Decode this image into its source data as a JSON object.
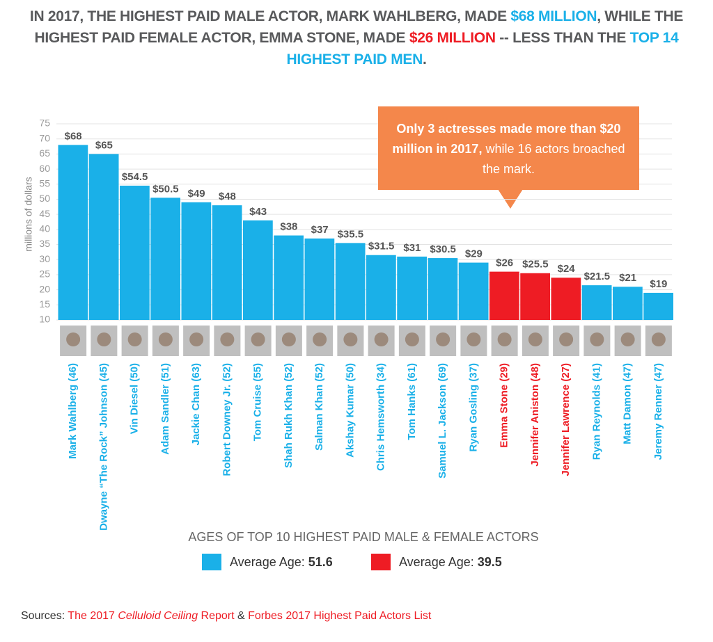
{
  "chart_data": {
    "type": "bar",
    "title": [
      {
        "text": "IN 2017, THE HIGHEST PAID MALE ACTOR, MARK WAHLBERG, MADE ",
        "color": "#58595b"
      },
      {
        "text": "$68 MILLION",
        "color": "#1ab0e8"
      },
      {
        "text": ", WHILE THE HIGHEST PAID FEMALE ACTOR, EMMA STONE, MADE ",
        "color": "#58595b"
      },
      {
        "text": "$26 MILLION",
        "color": "#ee1c24"
      },
      {
        "text": " -- LESS THAN THE ",
        "color": "#58595b"
      },
      {
        "text": "TOP 14 HIGHEST PAID MEN",
        "color": "#1ab0e8"
      },
      {
        "text": ".",
        "color": "#58595b"
      }
    ],
    "y_label": "millions of dollars",
    "categories": [
      "Mark Wahlberg (46)",
      "Dwayne “The Rock” Johnson (45)",
      "Vin Diesel (50)",
      "Adam Sandler (51)",
      "Jackie Chan (63)",
      "Robert Downey Jr. (52)",
      "Tom Cruise (55)",
      "Shah Rukh Khan (52)",
      "Salman Khan (52)",
      "Akshay Kumar (50)",
      "Chris Hemsworth (34)",
      "Tom Hanks (61)",
      "Samuel L. Jackson (69)",
      "Ryan Gosling (37)",
      "Emma Stone (29)",
      "Jennifer Aniston (48)",
      "Jennifer Lawrence (27)",
      "Ryan Reynolds (41)",
      "Matt Damon (47)",
      "Jeremy Renner (47)"
    ],
    "values": [
      68,
      65,
      54.5,
      50.5,
      49,
      48,
      43,
      38,
      37,
      35.5,
      31.5,
      31,
      30.5,
      29,
      26,
      25.5,
      24,
      21.5,
      21,
      19
    ],
    "value_labels": [
      "$68",
      "$65",
      "$54.5",
      "$50.5",
      "$49",
      "$48",
      "$43",
      "$38",
      "$37",
      "$35.5",
      "$31.5",
      "$31",
      "$30.5",
      "$29",
      "$26",
      "$25.5",
      "$24",
      "$21.5",
      "$21",
      "$19"
    ],
    "colors": [
      "#1ab0e8",
      "#1ab0e8",
      "#1ab0e8",
      "#1ab0e8",
      "#1ab0e8",
      "#1ab0e8",
      "#1ab0e8",
      "#1ab0e8",
      "#1ab0e8",
      "#1ab0e8",
      "#1ab0e8",
      "#1ab0e8",
      "#1ab0e8",
      "#1ab0e8",
      "#ee1c24",
      "#ee1c24",
      "#ee1c24",
      "#1ab0e8",
      "#1ab0e8",
      "#1ab0e8"
    ],
    "ylim": [
      10,
      75
    ],
    "yticks": [
      10,
      15,
      20,
      25,
      30,
      35,
      40,
      45,
      50,
      55,
      60,
      65,
      70,
      75
    ],
    "grid": true,
    "annotation": {
      "bold": "Only 3 actresses made more than $20 million in 2017,",
      "text": " while 16 actors broached the mark."
    },
    "legend": {
      "title": "AGES OF TOP 10 HIGHEST PAID MALE & FEMALE ACTORS",
      "items": [
        {
          "label": "Average Age:",
          "value": 51.6,
          "color": "#1ab0e8"
        },
        {
          "label": "Average Age:",
          "value": 39.5,
          "color": "#ee1c24"
        }
      ]
    },
    "sources": [
      {
        "text": "Sources: ",
        "color": "#333333",
        "italic": false
      },
      {
        "text": "The 2017 ",
        "color": "#ee1c24",
        "italic": false
      },
      {
        "text": "Celluloid Ceiling",
        "color": "#ee1c24",
        "italic": true
      },
      {
        "text": " Report",
        "color": "#ee1c24",
        "italic": false
      },
      {
        "text": " & ",
        "color": "#333333",
        "italic": false
      },
      {
        "text": "Forbes 2017 Highest Paid Actors List",
        "color": "#ee1c24",
        "italic": false
      }
    ]
  }
}
